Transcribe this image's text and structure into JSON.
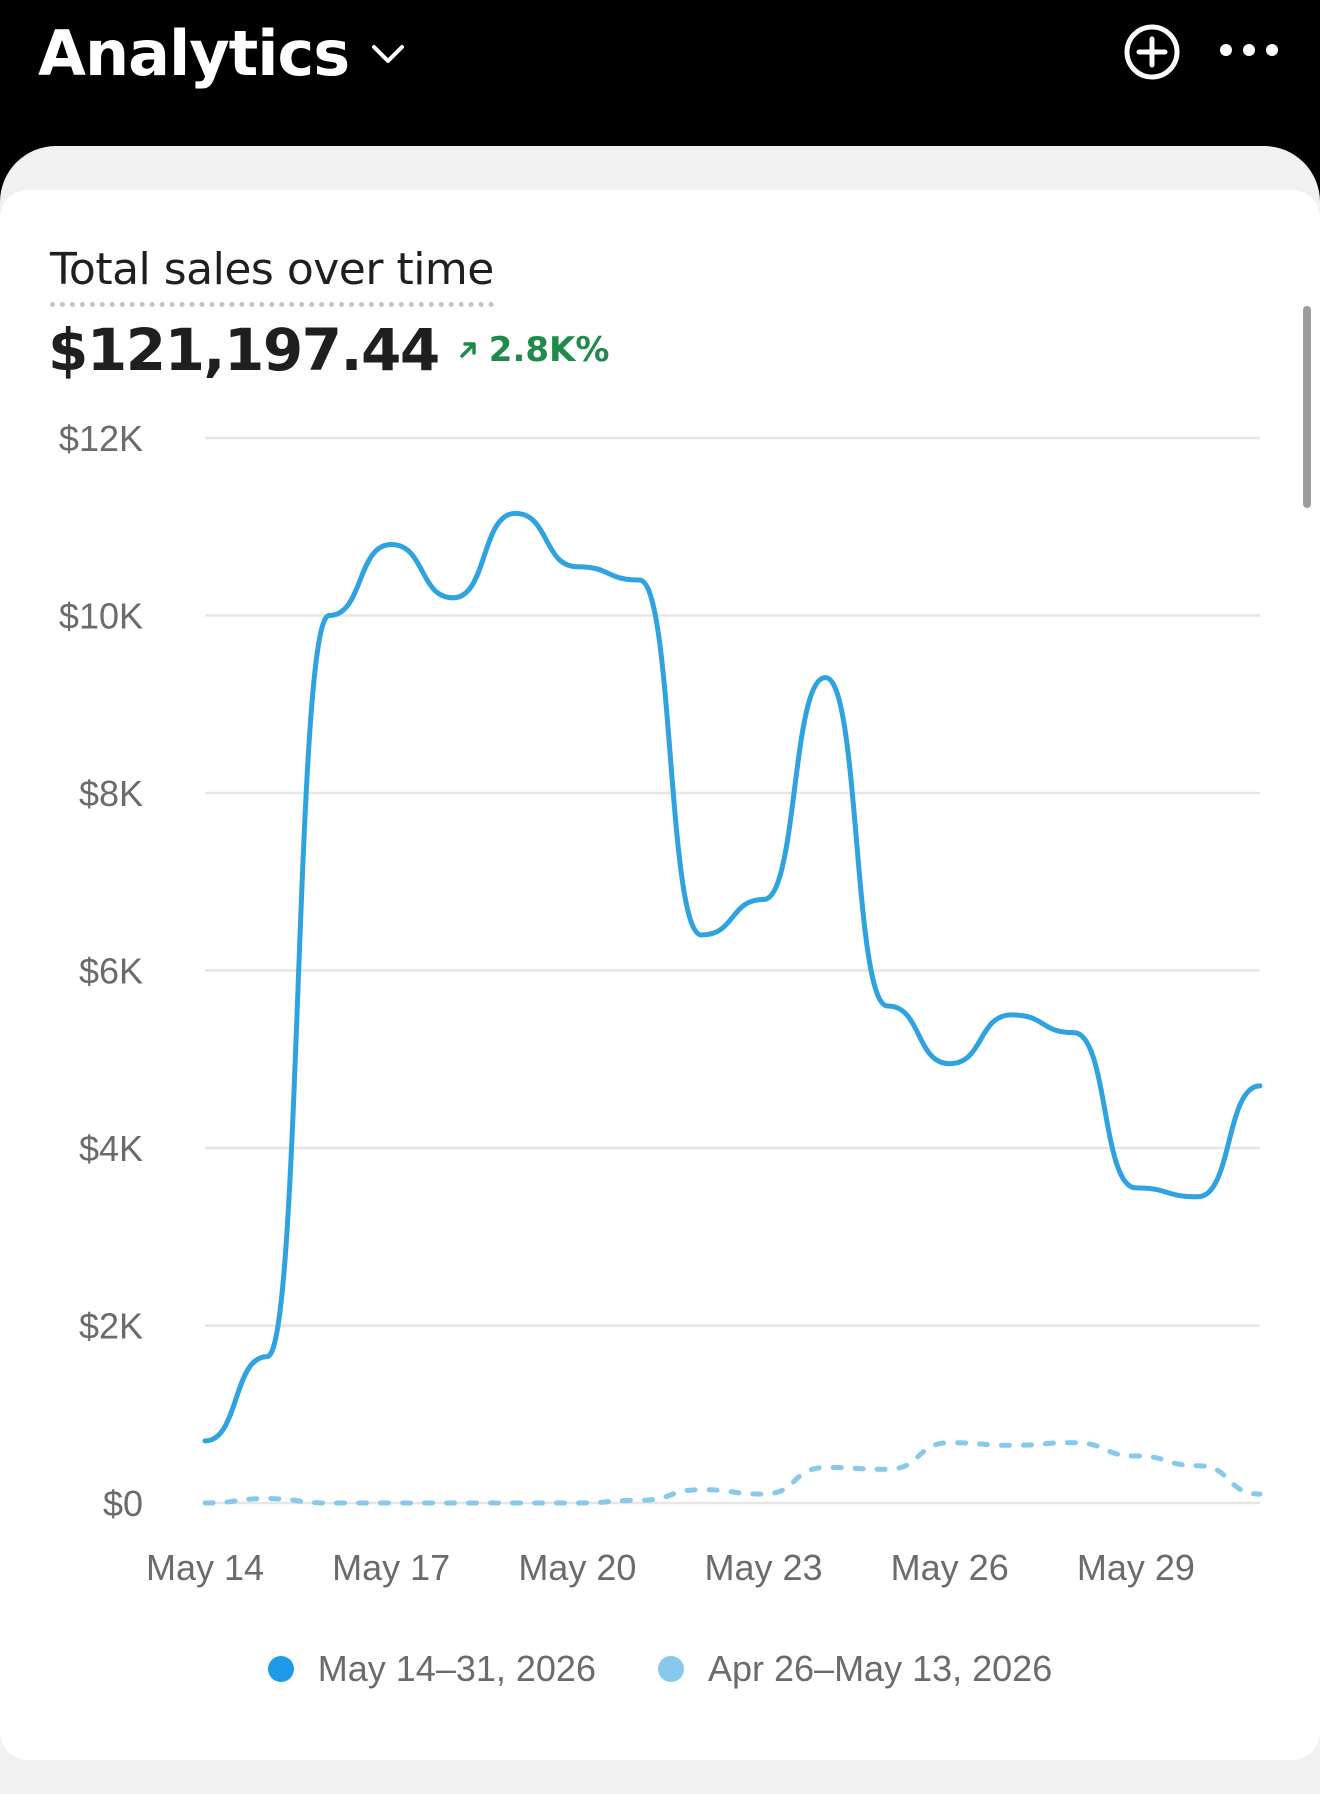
{
  "header": {
    "title": "Analytics"
  },
  "icons": {
    "title_menu": "chevron-down-icon",
    "add": "plus-circle-icon",
    "more": "more-horizontal-icon",
    "change_direction": "arrow-up-right-icon"
  },
  "card": {
    "title": "Total sales over time",
    "total": "$121,197.44",
    "change": "2.8K%"
  },
  "colors": {
    "current_series": "#2ea3e0",
    "previous_series": "#86c9ea",
    "positive_change": "#1f8a4c"
  },
  "chart_data": {
    "type": "line",
    "title": "Total sales over time",
    "xlabel": "",
    "ylabel": "",
    "ylim": [
      0,
      12000
    ],
    "y_ticks": [
      0,
      2000,
      4000,
      6000,
      8000,
      10000,
      12000
    ],
    "y_tick_labels": [
      "$0",
      "$2K",
      "$4K",
      "$6K",
      "$8K",
      "$10K",
      "$12K"
    ],
    "x_tick_labels": [
      "May 14",
      "May 17",
      "May 20",
      "May 23",
      "May 26",
      "May 29"
    ],
    "x_tick_positions": [
      0,
      3,
      6,
      9,
      12,
      15
    ],
    "grid": true,
    "legend_position": "bottom-center",
    "series": [
      {
        "name": "May 14–31, 2026",
        "style": "solid",
        "values": [
          700,
          1650,
          10000,
          10800,
          10200,
          11150,
          10550,
          10400,
          6400,
          6800,
          9300,
          5600,
          4950,
          5500,
          5300,
          3550,
          3450,
          4700
        ]
      },
      {
        "name": "Apr 26–May 13, 2026",
        "style": "dashed",
        "values": [
          0,
          50,
          0,
          0,
          0,
          0,
          0,
          30,
          150,
          100,
          400,
          380,
          680,
          650,
          680,
          530,
          420,
          100
        ]
      }
    ]
  }
}
